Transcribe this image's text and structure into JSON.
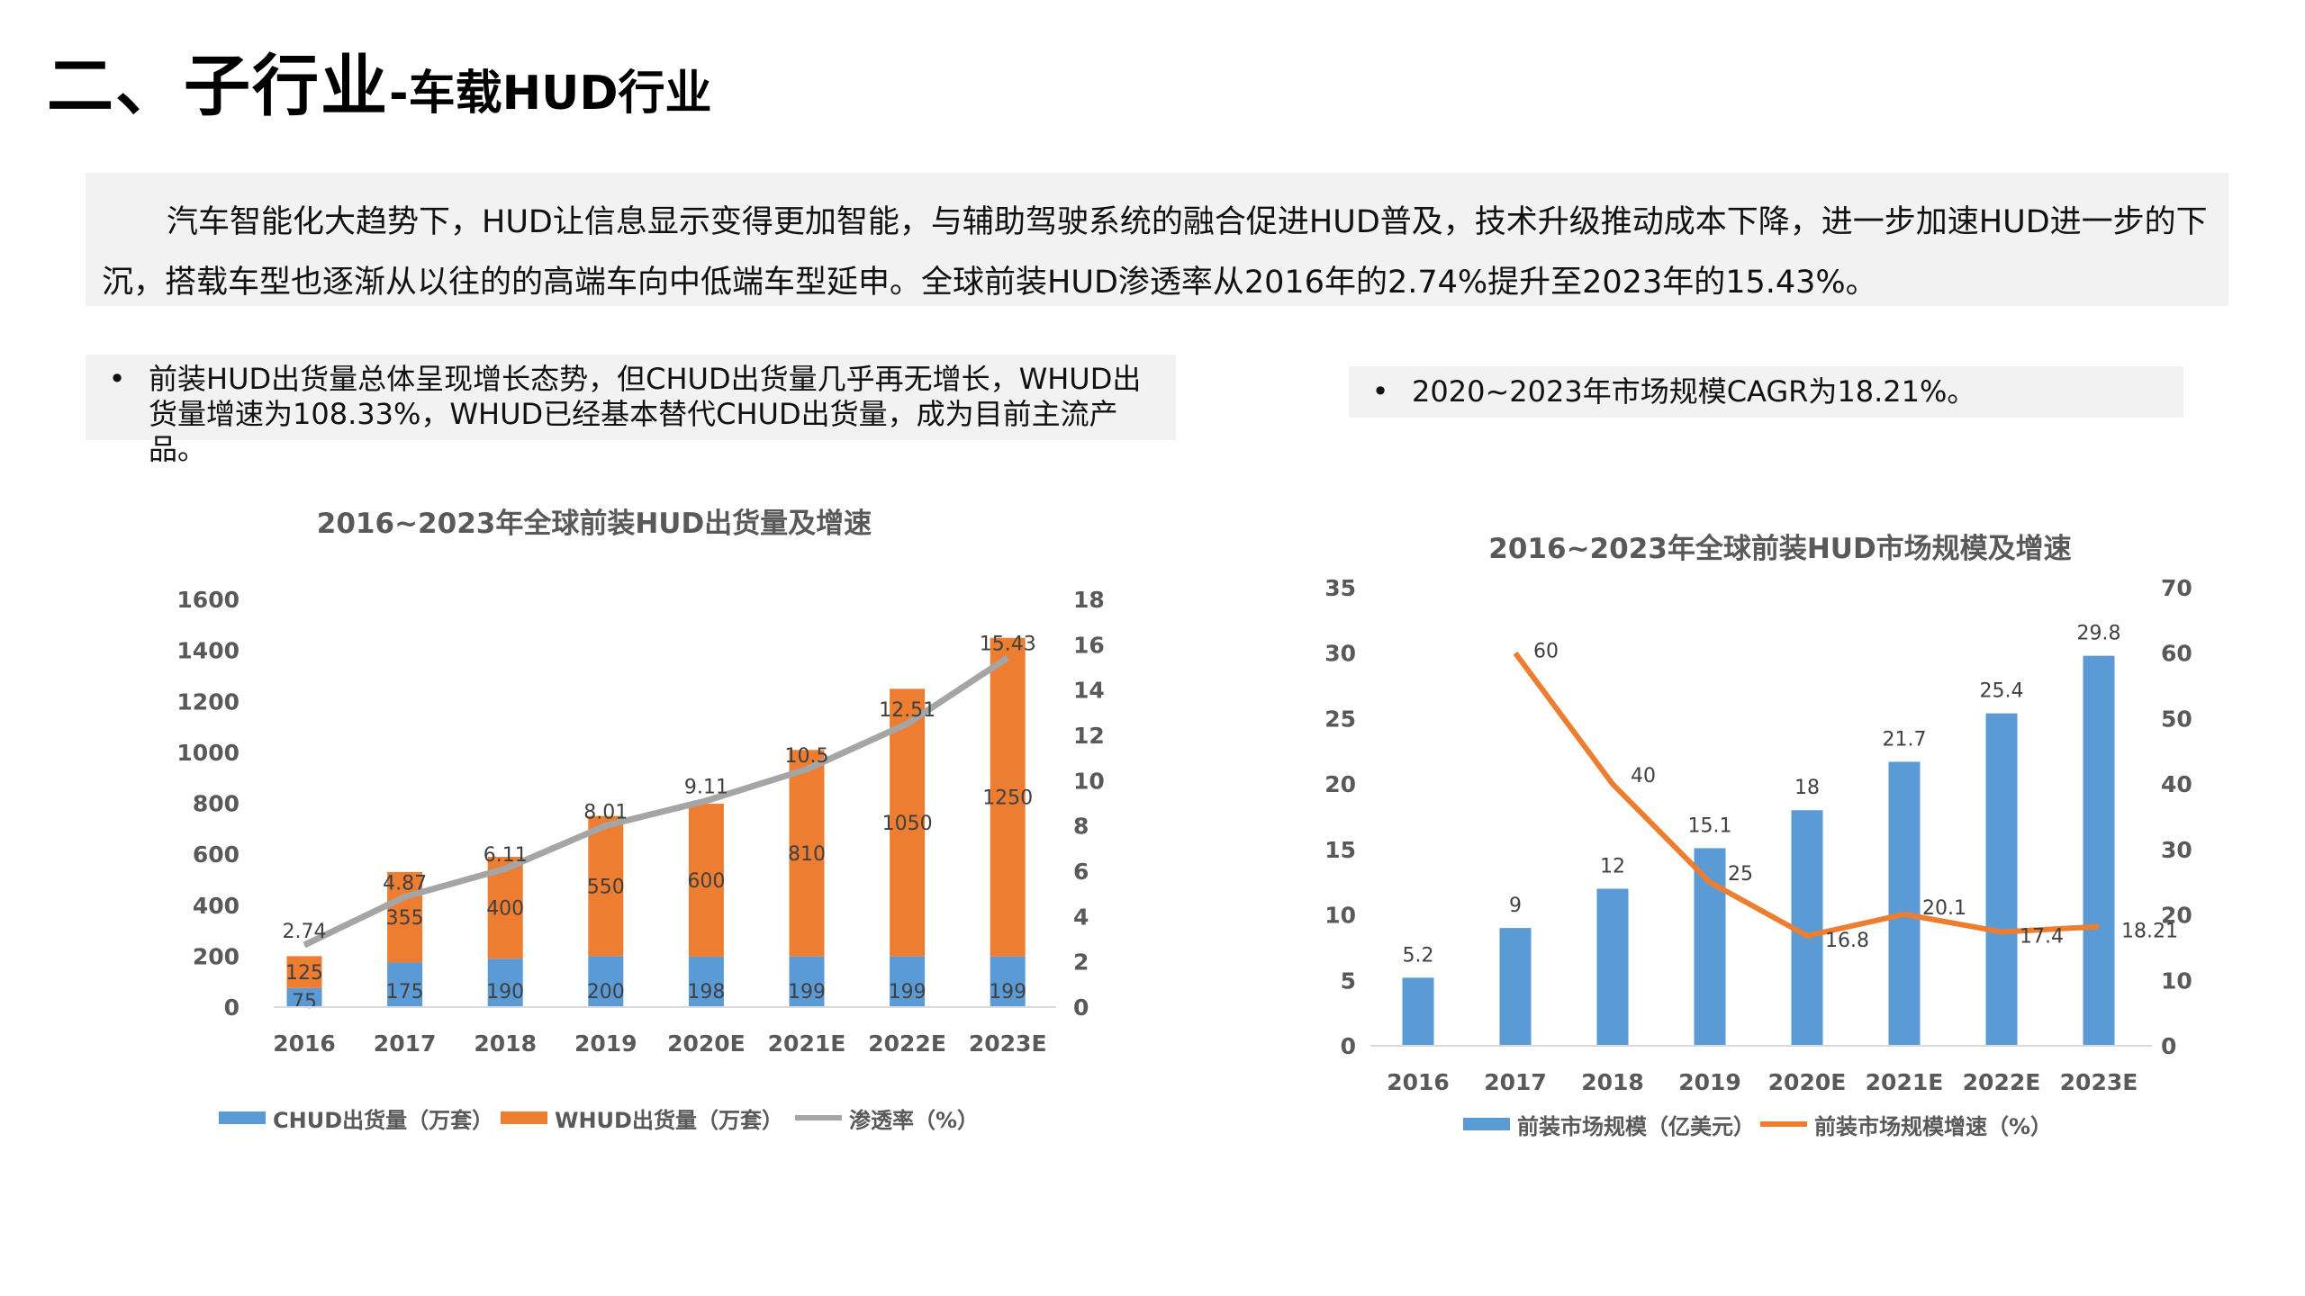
{
  "header": {
    "title_main": "二、子行业",
    "title_sub": "-车载HUD行业"
  },
  "intro": "汽车智能化大趋势下，HUD让信息显示变得更加智能，与辅助驾驶系统的融合促进HUD普及，技术升级推动成本下降，进一步加速HUD进一步的下沉，搭载车型也逐渐从以往的的高端车向中低端车型延申。全球前装HUD渗透率从2016年的2.74%提升至2023年的15.43%。",
  "bullets": {
    "left": "前装HUD出货量总体呈现增长态势，但CHUD出货量几乎再无增长，WHUD出货量增速为108.33%，WHUD已经基本替代CHUD出货量，成为目前主流产品。",
    "right": "2020~2023年市场规模CAGR为18.21%。",
    "marker": "•"
  },
  "colors": {
    "blue": "#5B9BD5",
    "orange": "#ED7D31",
    "gray": "#A5A5A5",
    "box": "#F2F2F2"
  },
  "chart_data": [
    {
      "type": "bar",
      "stacked": true,
      "title": "2016~2023年全球前装HUD出货量及增速",
      "categories": [
        "2016",
        "2017",
        "2018",
        "2019",
        "2020E",
        "2021E",
        "2022E",
        "2023E"
      ],
      "ylim": [
        0,
        1600
      ],
      "yticks": [
        0,
        200,
        400,
        600,
        800,
        1000,
        1200,
        1400,
        1600
      ],
      "y2lim": [
        0,
        18
      ],
      "y2ticks": [
        0,
        2,
        4,
        6,
        8,
        10,
        12,
        14,
        16,
        18
      ],
      "grid": false,
      "legend": "bottom",
      "series": [
        {
          "name": "CHUD出货量（万套）",
          "type": "bar",
          "axis": "left",
          "color": "#5B9BD5",
          "values": [
            75,
            175,
            190,
            200,
            198,
            199,
            199,
            199
          ]
        },
        {
          "name": "WHUD出货量（万套）",
          "type": "bar",
          "axis": "left",
          "color": "#ED7D31",
          "values": [
            125,
            355,
            400,
            550,
            600,
            810,
            1050,
            1250
          ]
        },
        {
          "name": "渗透率（%）",
          "type": "line",
          "axis": "right",
          "color": "#A5A5A5",
          "values": [
            2.74,
            4.87,
            6.11,
            8.01,
            9.11,
            10.5,
            12.51,
            15.43
          ]
        }
      ]
    },
    {
      "type": "bar",
      "title": "2016~2023年全球前装HUD市场规模及增速",
      "categories": [
        "2016",
        "2017",
        "2018",
        "2019",
        "2020E",
        "2021E",
        "2022E",
        "2023E"
      ],
      "ylim": [
        0,
        35
      ],
      "yticks": [
        0,
        5,
        10,
        15,
        20,
        25,
        30,
        35
      ],
      "y2lim": [
        0,
        70
      ],
      "y2ticks": [
        0,
        10,
        20,
        30,
        40,
        50,
        60,
        70
      ],
      "grid": false,
      "legend": "bottom",
      "series": [
        {
          "name": "前装市场规模（亿美元）",
          "type": "bar",
          "axis": "left",
          "color": "#5B9BD5",
          "values": [
            5.2,
            9,
            12,
            15.1,
            18,
            21.7,
            25.4,
            29.8
          ]
        },
        {
          "name": "前装市场规模增速（%）",
          "type": "line",
          "axis": "right",
          "color": "#ED7D31",
          "values": [
            null,
            60,
            40,
            25,
            16.8,
            20.1,
            17.4,
            18.21
          ]
        }
      ]
    }
  ]
}
